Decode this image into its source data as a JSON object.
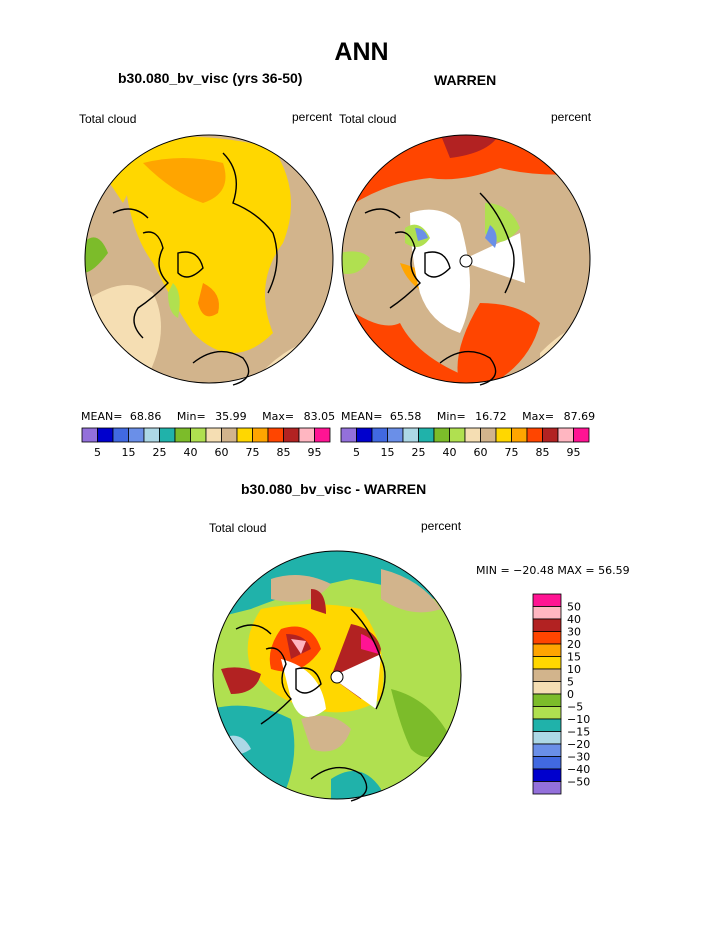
{
  "main_title": "ANN",
  "panels": [
    {
      "title": "b30.080_bv_visc (yrs 36-50)",
      "left_label": "Total cloud",
      "right_label": "percent",
      "stats": {
        "mean_label": "MEAN=",
        "mean": "68.86",
        "min_label": "Min=",
        "min": "35.99",
        "max_label": "Max=",
        "max": "83.05"
      }
    },
    {
      "title": "WARREN",
      "left_label": "Total cloud",
      "right_label": "percent",
      "stats": {
        "mean_label": "MEAN=",
        "mean": "65.58",
        "min_label": "Min=",
        "min": "16.72",
        "max_label": "Max=",
        "max": "87.69"
      }
    },
    {
      "title": "b30.080_bv_visc - WARREN",
      "left_label": "Total cloud",
      "right_label": "percent",
      "stats_line": "MIN = −20.48 MAX =  56.59"
    }
  ],
  "abs_colorbar": {
    "colors": [
      "#9370db",
      "#0000cd",
      "#4169e1",
      "#6a8fe8",
      "#add8e6",
      "#20b2aa",
      "#7cbc2a",
      "#b0e050",
      "#f5deb3",
      "#d2b48c",
      "#ffd700",
      "#ffa500",
      "#ff4500",
      "#b22222",
      "#ffb6c1",
      "#ff1493"
    ],
    "tick_labels": [
      "5",
      "15",
      "25",
      "40",
      "60",
      "75",
      "85",
      "95"
    ]
  },
  "diff_colorbar": {
    "colors": [
      "#ff1493",
      "#ffb6c1",
      "#b22222",
      "#ff4500",
      "#ffa500",
      "#ffd700",
      "#d2b48c",
      "#f5deb3",
      "#7cbc2a",
      "#b0e050",
      "#20b2aa",
      "#add8e6",
      "#6a8fe8",
      "#4169e1",
      "#0000cd",
      "#9370db"
    ],
    "tick_labels": [
      "50",
      "40",
      "30",
      "20",
      "15",
      "10",
      "5",
      "0",
      "−5",
      "−10",
      "−15",
      "−20",
      "−30",
      "−40",
      "−50"
    ]
  }
}
